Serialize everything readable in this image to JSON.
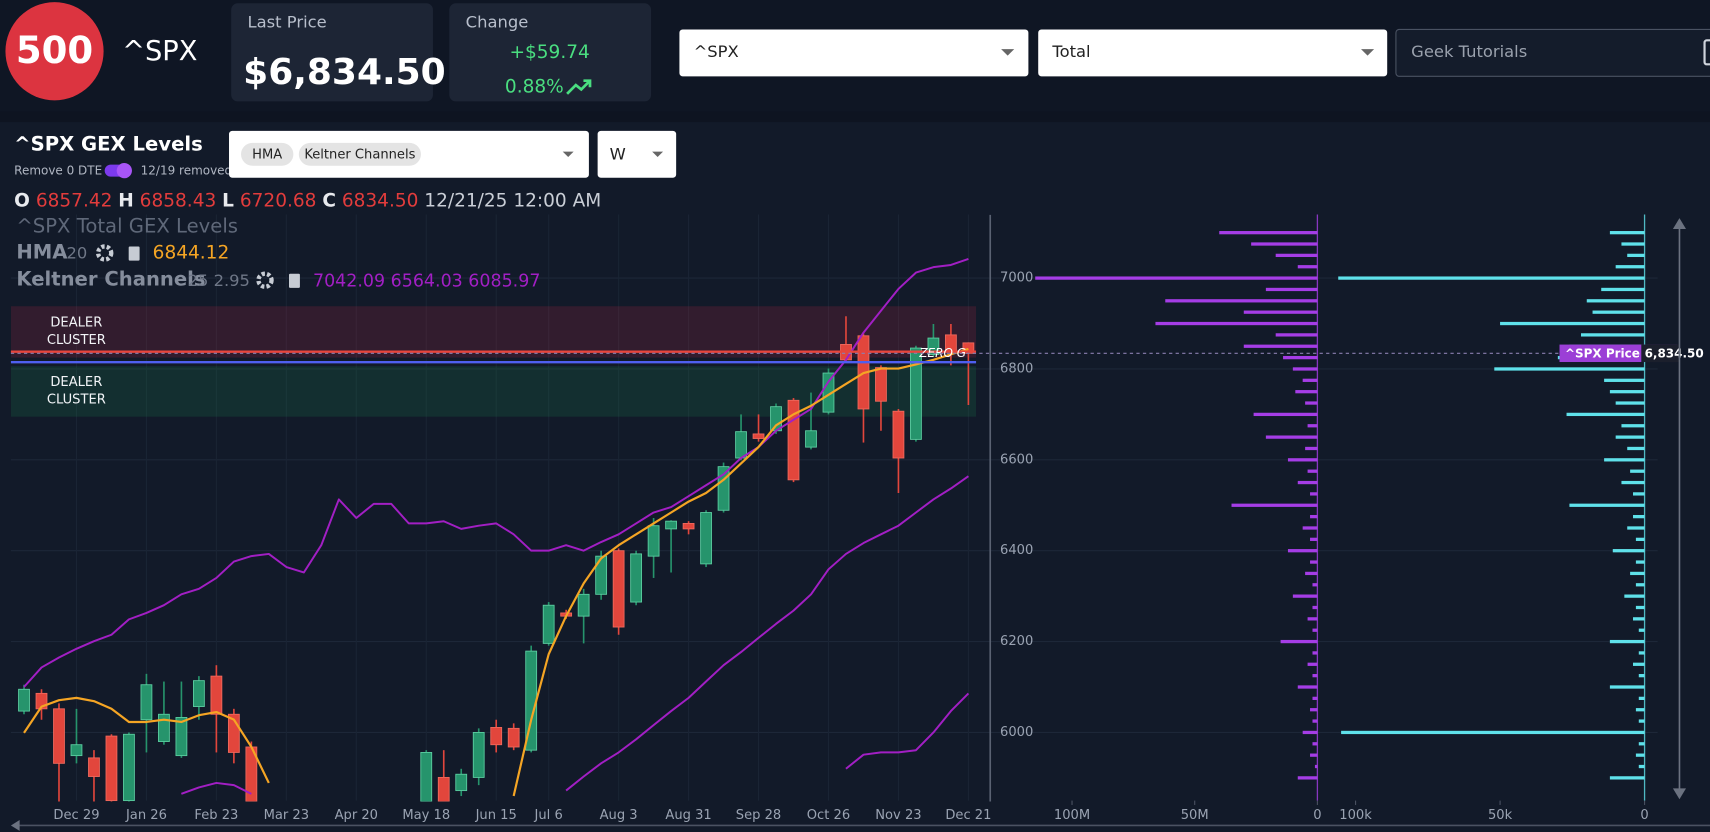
{
  "header": {
    "logo": "500",
    "symbol": "^SPX",
    "last_price_label": "Last Price",
    "last_price": "$6,834.50",
    "change_label": "Change",
    "change": "+$59.74",
    "change_pct": "0.88%",
    "selects": [
      "^SPX",
      "Total",
      "Geek Tutorials"
    ]
  },
  "panel": {
    "title": "^SPX GEX Levels",
    "toggle_label": "Remove 0 DTE",
    "toggle_note": "12/19 removed",
    "indicators": [
      "HMA",
      "Keltner Channels"
    ],
    "timeframe": "W",
    "ohlc": [
      {
        "key": "O",
        "value": "6857.42"
      },
      {
        "key": "H",
        "value": "6858.43"
      },
      {
        "key": "L",
        "value": "6720.68"
      },
      {
        "key": "C",
        "value": "6834.50"
      }
    ],
    "date": "12/21/25 12:00 AM"
  },
  "chart_data": [
    {
      "type": "candlestick",
      "title": "^SPX Total GEX Levels",
      "categories": [
        null,
        null,
        null,
        "Dec 29",
        null,
        null,
        null,
        "Jan 26",
        null,
        null,
        null,
        "Feb 23",
        null,
        null,
        null,
        "Mar 23",
        null,
        null,
        null,
        "Apr 20",
        null,
        null,
        null,
        "May 18",
        null,
        null,
        null,
        "Jun 15",
        null,
        null,
        "Jul 6",
        null,
        null,
        null,
        "Aug 3",
        null,
        null,
        null,
        "Aug 31",
        null,
        null,
        null,
        "Sep 28",
        null,
        null,
        null,
        "Oct 26",
        null,
        null,
        null,
        "Nov 23",
        null,
        null,
        null,
        "Dec 21"
      ],
      "open": [
        6047,
        6086,
        6052,
        5949,
        5944,
        5992,
        5850,
        6028,
        5980,
        5949,
        6057,
        6124,
        6040,
        5968,
        null,
        null,
        null,
        null,
        null,
        null,
        null,
        null,
        null,
        5848,
        5901,
        5872,
        5901,
        6011,
        6009,
        5961,
        6196,
        6263,
        6256,
        6304,
        6400,
        6287,
        6388,
        6448,
        6460,
        6371,
        6489,
        6604,
        6657,
        6664,
        6731,
        6628,
        6705,
        6854,
        6873,
        6803,
        6707,
        6645,
        6832,
        6875,
        6857.42
      ],
      "high": [
        6105,
        6095,
        6064,
        6052,
        5961,
        5996,
        6000,
        6129,
        6112,
        6112,
        6124,
        6148,
        6052,
        5980,
        null,
        null,
        null,
        null,
        null,
        null,
        null,
        null,
        null,
        5961,
        5961,
        5920,
        6009,
        6028,
        6020,
        6191,
        6287,
        6270,
        6316,
        6400,
        6405,
        6400,
        6472,
        6467,
        6465,
        6489,
        6594,
        6700,
        6700,
        6724,
        6736,
        6748,
        6801,
        6916,
        6878,
        6808,
        6712,
        6851,
        6899,
        6899,
        6858.43
      ],
      "low": [
        6040,
        6028,
        5848,
        5932,
        5848,
        5848,
        5848,
        5956,
        5973,
        5944,
        6028,
        5956,
        5932,
        5848,
        null,
        null,
        null,
        null,
        null,
        null,
        null,
        null,
        null,
        5848,
        5848,
        5860,
        5884,
        5956,
        5961,
        5956,
        6191,
        6250,
        6196,
        6292,
        6215,
        6280,
        6340,
        6352,
        6436,
        6364,
        6484,
        6599,
        6640,
        6657,
        6551,
        6623,
        6700,
        6815,
        6638,
        6664,
        6527,
        6640,
        6827,
        6808,
        6720.68
      ],
      "close": [
        6095,
        6052,
        5932,
        5973,
        5903,
        5850,
        5996,
        6105,
        6040,
        6033,
        6114,
        6040,
        5956,
        5848,
        null,
        null,
        null,
        null,
        null,
        null,
        null,
        null,
        null,
        5956,
        5848,
        5908,
        6000,
        5973,
        5968,
        6179,
        6280,
        6256,
        6304,
        6388,
        6232,
        6393,
        6455,
        6465,
        6448,
        6484,
        6585,
        6662,
        6647,
        6717,
        6556,
        6664,
        6791,
        6820,
        6712,
        6729,
        6604,
        6846,
        6868,
        6839,
        6834.5
      ],
      "up_color": "#26946c",
      "down_color": "#e2463c",
      "hma": {
        "name": "HMA",
        "period": 20,
        "color": "#f5a524",
        "values": [
          5999,
          6057,
          6071,
          6076,
          6069,
          6052,
          6023,
          6023,
          6028,
          6023,
          6038,
          6045,
          6028,
          5968,
          5889,
          null,
          null,
          null,
          null,
          null,
          null,
          null,
          null,
          null,
          null,
          null,
          null,
          null,
          5860,
          6028,
          6172,
          6256,
          6328,
          6383,
          6412,
          6436,
          6460,
          6484,
          6508,
          6527,
          6556,
          6592,
          6628,
          6676,
          6700,
          6719,
          6743,
          6767,
          6791,
          6801,
          6801,
          6810,
          6820,
          6832,
          6844.12
        ]
      },
      "keltner": {
        "name": "Keltner Channels",
        "params": "25 2.95",
        "color": "#a21fc4",
        "last": "7042.09 6564.03 6085.97",
        "upper": [
          6100,
          6143,
          6165,
          6184,
          6201,
          6215,
          6249,
          6263,
          6280,
          6304,
          6316,
          6340,
          6376,
          6388,
          6393,
          6364,
          6352,
          6412,
          6513,
          6472,
          6503,
          6503,
          6460,
          6460,
          6465,
          6448,
          6455,
          6460,
          6436,
          6400,
          6400,
          6412,
          6400,
          6419,
          6436,
          6460,
          6484,
          6496,
          6520,
          6544,
          6568,
          6604,
          6628,
          6664,
          6688,
          6712,
          6772,
          6820,
          6880,
          6928,
          6976,
          7012,
          7024,
          7029,
          7042.09
        ],
        "middle": [
          null,
          null,
          null,
          null,
          null,
          null,
          null,
          null,
          null,
          5865,
          5879,
          5889,
          5884,
          5865,
          null,
          null,
          null,
          null,
          null,
          null,
          null,
          null,
          null,
          null,
          null,
          null,
          null,
          null,
          null,
          null,
          null,
          5872,
          5903,
          5932,
          5956,
          5985,
          6016,
          6047,
          6076,
          6112,
          6148,
          6177,
          6208,
          6239,
          6268,
          6304,
          6359,
          6393,
          6417,
          6436,
          6455,
          6484,
          6513,
          6537,
          6564.03
        ],
        "lower": [
          null,
          null,
          null,
          null,
          null,
          null,
          null,
          null,
          null,
          null,
          null,
          null,
          null,
          null,
          null,
          null,
          null,
          null,
          null,
          null,
          null,
          null,
          null,
          null,
          null,
          null,
          null,
          null,
          null,
          null,
          null,
          null,
          null,
          null,
          null,
          null,
          null,
          null,
          null,
          null,
          null,
          null,
          null,
          null,
          null,
          null,
          null,
          5920,
          5951,
          5956,
          5956,
          5961,
          6000,
          6047,
          6085.97
        ]
      },
      "zones": [
        {
          "label_lines": [
            "DEALER",
            "CLUSTER"
          ],
          "from": 6825,
          "to": 6938,
          "color": "#d42a48"
        },
        {
          "label_lines": [
            "DEALER",
            "CLUSTER"
          ],
          "from": 6695,
          "to": 6806,
          "color": "#1f9d55"
        }
      ],
      "levels": [
        {
          "value": 6838,
          "color": "#e8453c"
        },
        {
          "value": 6815,
          "color": "#4f5ff0",
          "label": "ZERO G"
        }
      ],
      "price_tag": {
        "label": "^SPX Price",
        "value": "6,834.50"
      },
      "ylim": [
        5850,
        7140
      ],
      "yticks": [
        6000,
        6200,
        6400,
        6600,
        6800,
        7000
      ],
      "grid": true
    },
    {
      "type": "bar",
      "orientation": "horizontal",
      "color": "#a53de6",
      "y": [
        7100,
        7075,
        7050,
        7025,
        7000,
        6975,
        6950,
        6925,
        6900,
        6875,
        6850,
        6825,
        6800,
        6775,
        6750,
        6725,
        6700,
        6675,
        6650,
        6625,
        6600,
        6575,
        6550,
        6525,
        6500,
        6475,
        6450,
        6425,
        6400,
        6375,
        6350,
        6325,
        6300,
        6275,
        6250,
        6225,
        6200,
        6175,
        6150,
        6125,
        6100,
        6075,
        6050,
        6025,
        6000,
        5975,
        5950,
        5925,
        5900
      ],
      "values": [
        40,
        27,
        17,
        8,
        115,
        21,
        62,
        30,
        66,
        17,
        30,
        14,
        10,
        6,
        9,
        5,
        26,
        4,
        21,
        5,
        12,
        4,
        8,
        3,
        35,
        3,
        6,
        3,
        12,
        3,
        5,
        2,
        10,
        2,
        4,
        2,
        15,
        2,
        4,
        2,
        8,
        2,
        3,
        2,
        6,
        2,
        3,
        1,
        8
      ],
      "xlim": [
        132,
        0
      ],
      "xticks": [
        {
          "value": 100,
          "label": "100M"
        },
        {
          "value": 50,
          "label": "50M"
        },
        0
      ],
      "ylim": [
        5850,
        7140
      ]
    },
    {
      "type": "bar",
      "orientation": "horizontal",
      "color": "#5fe1ea",
      "y": [
        7100,
        7075,
        7050,
        7025,
        7000,
        6975,
        6950,
        6925,
        6900,
        6875,
        6850,
        6825,
        6800,
        6775,
        6750,
        6725,
        6700,
        6675,
        6650,
        6625,
        6600,
        6575,
        6550,
        6525,
        6500,
        6475,
        6450,
        6425,
        6400,
        6375,
        6350,
        6325,
        6300,
        6275,
        6250,
        6225,
        6200,
        6175,
        6150,
        6125,
        6100,
        6075,
        6050,
        6025,
        6000,
        5975,
        5950,
        5925,
        5900
      ],
      "values": [
        12,
        8,
        6,
        10,
        106,
        15,
        20,
        18,
        50,
        22,
        26,
        30,
        52,
        14,
        12,
        10,
        27,
        8,
        10,
        6,
        14,
        5,
        8,
        4,
        26,
        4,
        6,
        3,
        11,
        3,
        5,
        3,
        7,
        3,
        4,
        2,
        12,
        2,
        4,
        2,
        12,
        2,
        3,
        2,
        105,
        2,
        3,
        2,
        12
      ],
      "xlim": [
        110,
        0
      ],
      "xticks": [
        {
          "value": 100,
          "label": "100k"
        },
        {
          "value": 50,
          "label": "50k"
        },
        0
      ],
      "ylim": [
        5850,
        7140
      ]
    }
  ]
}
